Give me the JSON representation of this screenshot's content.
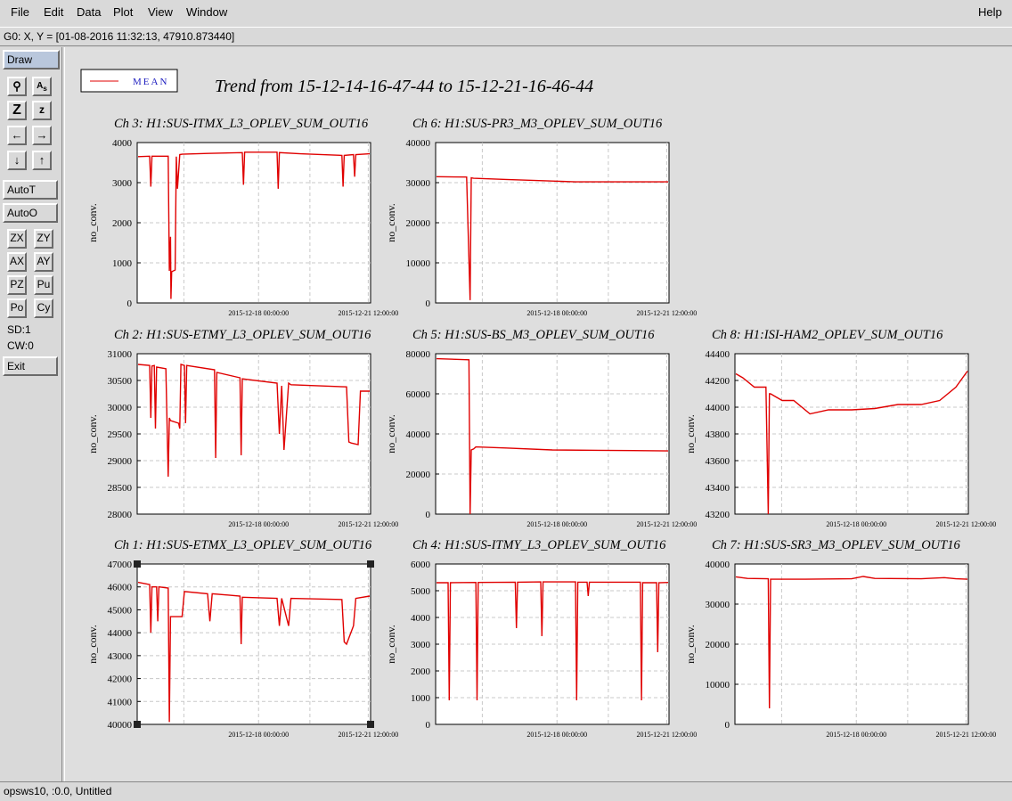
{
  "menu": {
    "file": "File",
    "edit": "Edit",
    "data": "Data",
    "plot": "Plot",
    "view": "View",
    "window": "Window",
    "help": "Help"
  },
  "coord_readout": "G0: X, Y = [01-08-2016 11:32:13, 47910.873440]",
  "toolbar": {
    "draw": "Draw",
    "autot": "AutoT",
    "autoo": "AutoO",
    "zx": "ZX",
    "zy": "ZY",
    "ax": "AX",
    "ay": "AY",
    "pz": "PZ",
    "pu": "Pu",
    "po": "Po",
    "cy": "Cy",
    "sd": "SD:1",
    "cw": "CW:0",
    "exit": "Exit"
  },
  "status": "opsws10, :0.0, Untitled",
  "figure": {
    "title": "Trend from 15-12-14-16-47-44 to 15-12-21-16-46-44",
    "legend": "MEAN",
    "line_color": "#e00000"
  },
  "chart_data": [
    {
      "type": "line",
      "id": "ch3",
      "title": "Ch 3: H1:SUS-ITMX_L3_OPLEV_SUM_OUT16",
      "ylabel": "no_conv.",
      "ylim": [
        0,
        4000
      ],
      "yticks": [
        "0",
        "1000",
        "2000",
        "3000",
        "4000"
      ],
      "xticks": [
        "2015-12-18 00:00:00",
        "2015-12-21 12:00:00"
      ],
      "x": [
        0,
        0.05,
        0.055,
        0.06,
        0.13,
        0.135,
        0.14,
        0.142,
        0.145,
        0.16,
        0.165,
        0.17,
        0.18,
        0.19,
        0.3,
        0.45,
        0.455,
        0.46,
        0.6,
        0.605,
        0.61,
        0.7,
        0.88,
        0.885,
        0.89,
        0.93,
        0.935,
        0.94,
        1
      ],
      "y": [
        3650,
        3660,
        2900,
        3660,
        3660,
        800,
        1650,
        100,
        780,
        820,
        3650,
        2850,
        3700,
        3710,
        3730,
        3750,
        2950,
        3760,
        3760,
        2850,
        3750,
        3720,
        3680,
        2900,
        3680,
        3700,
        3150,
        3700,
        3720
      ]
    },
    {
      "type": "line",
      "id": "ch6",
      "title": "Ch 6: H1:SUS-PR3_M3_OPLEV_SUM_OUT16",
      "ylabel": "no_conv.",
      "ylim": [
        0,
        40000
      ],
      "yticks": [
        "0",
        "10000",
        "20000",
        "30000",
        "40000"
      ],
      "xticks": [
        "2015-12-18 00:00:00",
        "2015-12-21 12:00:00"
      ],
      "x": [
        0,
        0.13,
        0.145,
        0.15,
        0.16,
        0.3,
        0.5,
        0.6,
        1
      ],
      "y": [
        31500,
        31400,
        700,
        31200,
        31100,
        30800,
        30400,
        30200,
        30200
      ]
    },
    {
      "type": "line",
      "id": "ch2",
      "title": "Ch 2: H1:SUS-ETMY_L3_OPLEV_SUM_OUT16",
      "ylabel": "no_conv.",
      "ylim": [
        28000,
        31000
      ],
      "yticks": [
        "28000",
        "28500",
        "29000",
        "29500",
        "30000",
        "30500",
        "31000"
      ],
      "xticks": [
        "2015-12-18 00:00:00",
        "2015-12-21 12:00:00"
      ],
      "x": [
        0,
        0.05,
        0.055,
        0.06,
        0.07,
        0.075,
        0.08,
        0.12,
        0.13,
        0.135,
        0.14,
        0.175,
        0.18,
        0.185,
        0.2,
        0.205,
        0.21,
        0.33,
        0.335,
        0.34,
        0.44,
        0.445,
        0.45,
        0.6,
        0.61,
        0.62,
        0.63,
        0.65,
        0.66,
        0.9,
        0.91,
        0.92,
        0.95,
        0.96,
        1
      ],
      "y": [
        30800,
        30780,
        29800,
        30770,
        30780,
        29600,
        30750,
        30720,
        28700,
        29800,
        29750,
        29700,
        29600,
        30800,
        30780,
        29700,
        30780,
        30700,
        29050,
        30650,
        30550,
        29100,
        30530,
        30450,
        29500,
        30400,
        29200,
        30450,
        30420,
        30380,
        29350,
        29330,
        29300,
        30300,
        30300
      ]
    },
    {
      "type": "line",
      "id": "ch5",
      "title": "Ch 5: H1:SUS-BS_M3_OPLEV_SUM_OUT16",
      "ylabel": "no_conv.",
      "ylim": [
        0,
        80000
      ],
      "yticks": [
        "0",
        "20000",
        "40000",
        "60000",
        "80000"
      ],
      "xticks": [
        "2015-12-18 00:00:00",
        "2015-12-21 12:00:00"
      ],
      "x": [
        0,
        0.14,
        0.145,
        0.15,
        0.16,
        0.17,
        0.3,
        0.5,
        0.7,
        0.85,
        1
      ],
      "y": [
        77500,
        77000,
        0,
        32000,
        32500,
        33500,
        33000,
        32000,
        31800,
        31700,
        31500
      ]
    },
    {
      "type": "line",
      "id": "ch8",
      "title": "Ch 8: H1:ISI-HAM2_OPLEV_SUM_OUT16",
      "ylabel": "no_conv.",
      "ylim": [
        43200,
        44400
      ],
      "yticks": [
        "43200",
        "43400",
        "43600",
        "43800",
        "44000",
        "44200",
        "44400"
      ],
      "xticks": [
        "2015-12-18 00:00:00",
        "2015-12-21 12:00:00"
      ],
      "x": [
        0,
        0.03,
        0.08,
        0.13,
        0.14,
        0.145,
        0.15,
        0.2,
        0.25,
        0.32,
        0.4,
        0.5,
        0.6,
        0.7,
        0.8,
        0.88,
        0.95,
        1
      ],
      "y": [
        44250,
        44220,
        44150,
        44150,
        43200,
        44100,
        44100,
        44050,
        44050,
        43950,
        43980,
        43980,
        43990,
        44020,
        44020,
        44050,
        44150,
        44270
      ]
    },
    {
      "type": "line",
      "id": "ch1",
      "title": "Ch 1: H1:SUS-ETMX_L3_OPLEV_SUM_OUT16",
      "ylabel": "no_conv.",
      "ylim": [
        40000,
        47000
      ],
      "yticks": [
        "40000",
        "41000",
        "42000",
        "43000",
        "44000",
        "45000",
        "46000",
        "47000"
      ],
      "xticks": [
        "2015-12-18 00:00:00",
        "2015-12-21 12:00:00"
      ],
      "x": [
        0,
        0.05,
        0.055,
        0.06,
        0.08,
        0.085,
        0.09,
        0.13,
        0.135,
        0.14,
        0.18,
        0.19,
        0.2,
        0.3,
        0.31,
        0.32,
        0.44,
        0.445,
        0.45,
        0.6,
        0.61,
        0.62,
        0.65,
        0.66,
        0.88,
        0.89,
        0.9,
        0.93,
        0.94,
        1
      ],
      "y": [
        46200,
        46100,
        44000,
        46000,
        46000,
        44500,
        46000,
        45950,
        40100,
        44700,
        44700,
        44700,
        45800,
        45700,
        44500,
        45700,
        45600,
        43500,
        45550,
        45500,
        44300,
        45500,
        44300,
        45500,
        45450,
        43600,
        43500,
        44300,
        45500,
        45600
      ]
    },
    {
      "type": "line",
      "id": "ch4",
      "title": "Ch 4: H1:SUS-ITMY_L3_OPLEV_SUM_OUT16",
      "ylabel": "no_conv.",
      "ylim": [
        0,
        6000
      ],
      "yticks": [
        "0",
        "1000",
        "2000",
        "3000",
        "4000",
        "5000",
        "6000"
      ],
      "xticks": [
        "2015-12-18 00:00:00",
        "2015-12-21 12:00:00"
      ],
      "x": [
        0,
        0.05,
        0.055,
        0.06,
        0.17,
        0.175,
        0.18,
        0.34,
        0.345,
        0.35,
        0.45,
        0.455,
        0.46,
        0.6,
        0.605,
        0.61,
        0.65,
        0.655,
        0.66,
        0.88,
        0.885,
        0.89,
        0.95,
        0.955,
        0.96,
        1
      ],
      "y": [
        5300,
        5300,
        900,
        5300,
        5310,
        900,
        5310,
        5320,
        3600,
        5320,
        5330,
        3300,
        5330,
        5330,
        900,
        5320,
        5320,
        4800,
        5320,
        5320,
        900,
        5300,
        5300,
        2700,
        5300,
        5310
      ]
    },
    {
      "type": "line",
      "id": "ch7",
      "title": "Ch 7: H1:SUS-SR3_M3_OPLEV_SUM_OUT16",
      "ylabel": "no_conv.",
      "ylim": [
        0,
        40000
      ],
      "yticks": [
        "0",
        "10000",
        "20000",
        "30000",
        "40000"
      ],
      "xticks": [
        "2015-12-18 00:00:00",
        "2015-12-21 12:00:00"
      ],
      "x": [
        0,
        0.05,
        0.14,
        0.145,
        0.15,
        0.3,
        0.5,
        0.55,
        0.6,
        0.8,
        0.9,
        0.95,
        1
      ],
      "y": [
        36800,
        36400,
        36300,
        4000,
        36200,
        36200,
        36300,
        36900,
        36400,
        36300,
        36600,
        36300,
        36200
      ]
    }
  ]
}
